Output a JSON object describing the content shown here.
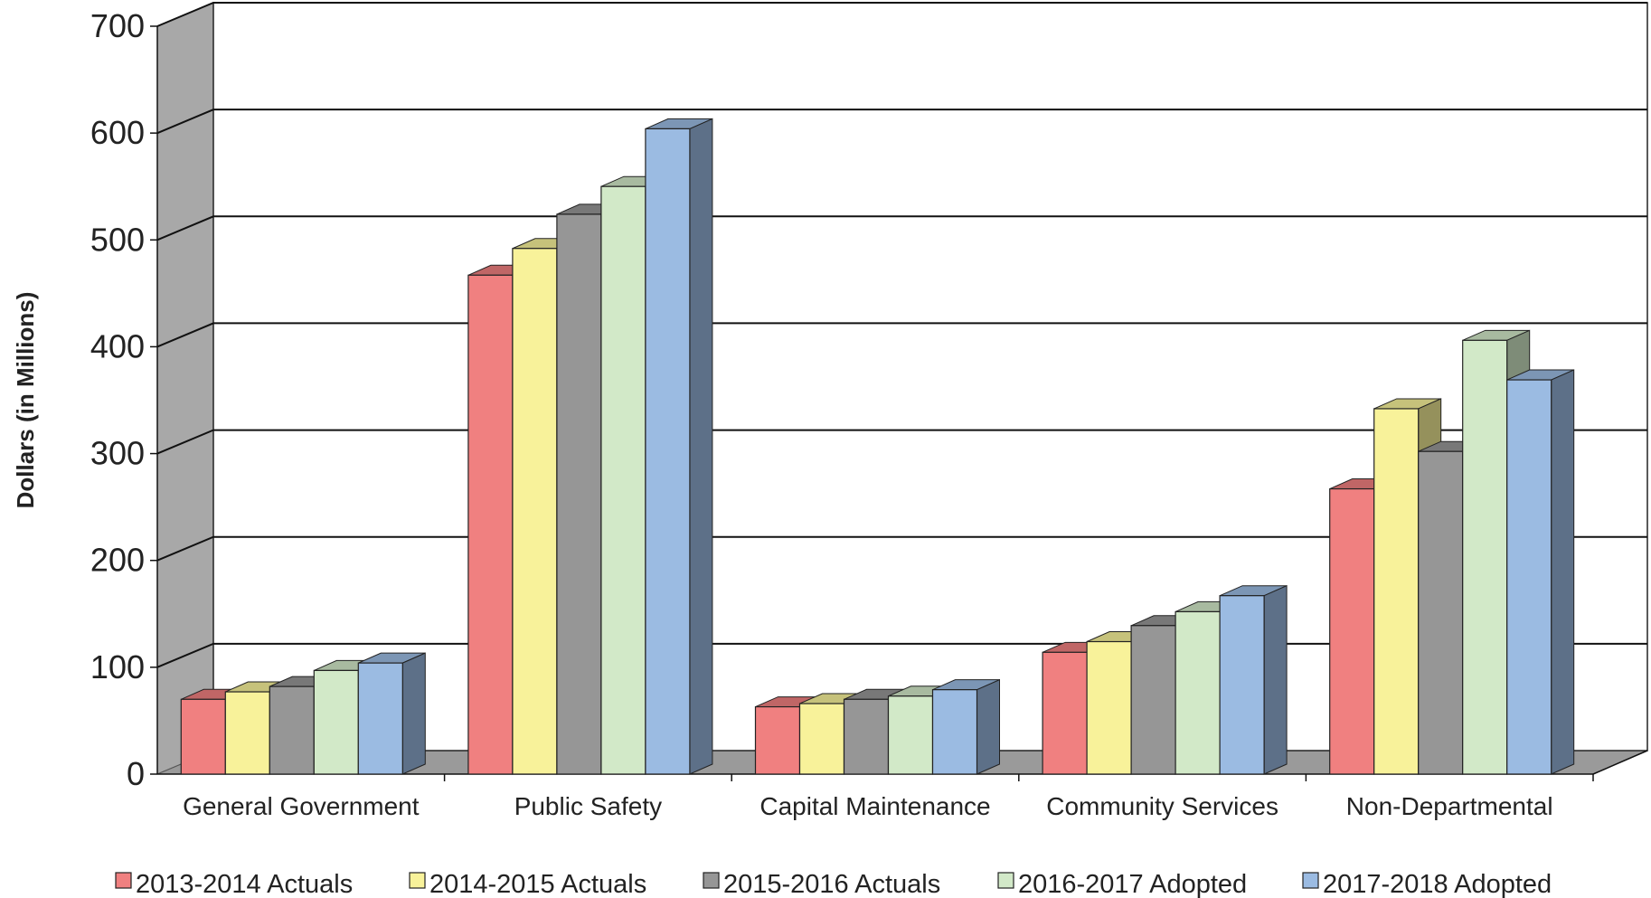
{
  "chart_data": {
    "type": "bar",
    "style": "3d-clustered-column",
    "title": "",
    "xlabel": "",
    "ylabel": "Dollars (in Millions)",
    "ylim": [
      0,
      700
    ],
    "yticks": [
      0,
      100,
      200,
      300,
      400,
      500,
      600,
      700
    ],
    "grid": true,
    "legend_position": "bottom",
    "categories": [
      "General Government",
      "Public Safety",
      "Capital Maintenance",
      "Community Services",
      "Non-Departmental"
    ],
    "series": [
      {
        "name": "2013-2014 Actuals",
        "values": [
          70,
          467,
          63,
          114,
          267
        ],
        "color": "#f08080"
      },
      {
        "name": "2014-2015 Actuals",
        "values": [
          77,
          492,
          66,
          124,
          342
        ],
        "color": "#f8f29a"
      },
      {
        "name": "2015-2016 Actuals",
        "values": [
          82,
          524,
          70,
          139,
          302
        ],
        "color": "#969696"
      },
      {
        "name": "2016-2017 Adopted",
        "values": [
          97,
          550,
          73,
          152,
          406
        ],
        "color": "#d2e9c8"
      },
      {
        "name": "2017-2018 Adopted",
        "values": [
          104,
          604,
          79,
          167,
          369
        ],
        "color": "#9bbbe2"
      }
    ]
  }
}
